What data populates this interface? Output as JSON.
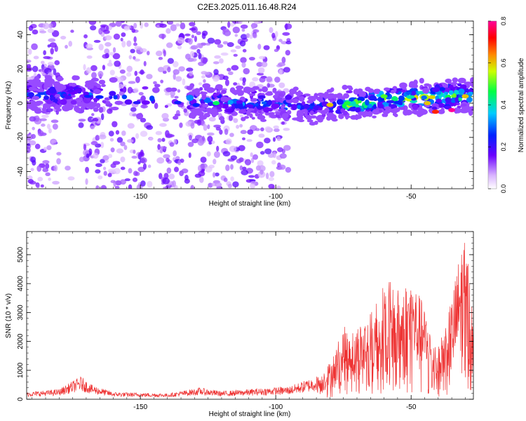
{
  "figure_title": "C2E3.2025.011.16.48.R24",
  "chart_data": [
    {
      "type": "heatmap",
      "title": "",
      "xlabel": "Height of straight line (km)",
      "ylabel": "Frequency (Hz)",
      "xlim": [
        -192,
        -27
      ],
      "ylim": [
        -50,
        48
      ],
      "x_ticks": [
        -150,
        -100,
        -50
      ],
      "y_ticks": [
        -40,
        -20,
        0,
        20,
        40
      ],
      "x_tick_labels": [
        "-150",
        "-100",
        "-50"
      ],
      "y_tick_labels": [
        "-40",
        "-20",
        "0",
        "20",
        "40"
      ],
      "colorbar": {
        "label": "Normalized spectral amplitude",
        "range": [
          0,
          0.8
        ],
        "ticks": [
          0,
          0.2,
          0.4,
          0.6,
          0.8
        ],
        "tick_labels": [
          "0.0",
          "0.2",
          "0.4",
          "0.6",
          "0.8"
        ],
        "colormap": "rainbow (white-violet-blue-cyan-green-yellow-red-magenta)"
      },
      "ridge": {
        "description": "main spectral band near 0 Hz, rising toward the right",
        "points": [
          {
            "x": -192,
            "y": 5
          },
          {
            "x": -170,
            "y": 5
          },
          {
            "x": -130,
            "y": 1
          },
          {
            "x": -100,
            "y": 0
          },
          {
            "x": -90,
            "y": -2
          },
          {
            "x": -80,
            "y": -2
          },
          {
            "x": -60,
            "y": 2
          },
          {
            "x": -40,
            "y": 4
          },
          {
            "x": -27,
            "y": 4
          }
        ],
        "peak_amplitude": 0.8
      },
      "scatter_regions": [
        {
          "x_range": [
            -192,
            -95
          ],
          "y_range": [
            -50,
            48
          ],
          "amplitude": 0.15
        }
      ]
    },
    {
      "type": "line",
      "title": "",
      "xlabel": "Height of straight line (km)",
      "ylabel": "SNR (10 * v/v)",
      "xlim": [
        -192,
        -27
      ],
      "ylim": [
        0,
        5800
      ],
      "x_ticks": [
        -150,
        -100,
        -50
      ],
      "y_ticks": [
        0,
        1000,
        2000,
        3000,
        4000,
        5000
      ],
      "x_tick_labels": [
        "-150",
        "-100",
        "-50"
      ],
      "y_tick_labels": [
        "0",
        "1000",
        "2000",
        "3000",
        "4000",
        "5000"
      ],
      "series": [
        {
          "color": "#ee3333",
          "envelope": [
            {
              "x": -192,
              "y": 250
            },
            {
              "x": -180,
              "y": 350
            },
            {
              "x": -172,
              "y": 800
            },
            {
              "x": -168,
              "y": 500
            },
            {
              "x": -160,
              "y": 250
            },
            {
              "x": -140,
              "y": 200
            },
            {
              "x": -128,
              "y": 400
            },
            {
              "x": -120,
              "y": 280
            },
            {
              "x": -110,
              "y": 350
            },
            {
              "x": -95,
              "y": 450
            },
            {
              "x": -85,
              "y": 800
            },
            {
              "x": -80,
              "y": 1300
            },
            {
              "x": -75,
              "y": 2500
            },
            {
              "x": -70,
              "y": 2600
            },
            {
              "x": -65,
              "y": 3000
            },
            {
              "x": -60,
              "y": 4300
            },
            {
              "x": -55,
              "y": 3800
            },
            {
              "x": -50,
              "y": 4300
            },
            {
              "x": -45,
              "y": 3200
            },
            {
              "x": -40,
              "y": 1800
            },
            {
              "x": -35,
              "y": 3500
            },
            {
              "x": -31,
              "y": 5700
            },
            {
              "x": -29,
              "y": 5000
            },
            {
              "x": -27,
              "y": 3500
            }
          ]
        }
      ]
    }
  ]
}
